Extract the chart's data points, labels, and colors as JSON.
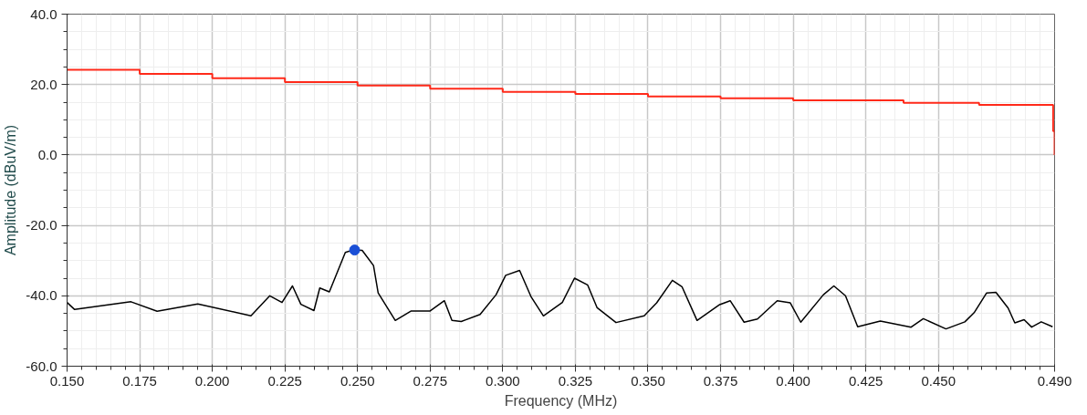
{
  "chart_data": {
    "type": "line",
    "xlabel": "Frequency (MHz)",
    "ylabel": "Amplitude (dBuV/m)",
    "xlim": [
      0.15,
      0.49
    ],
    "ylim": [
      -60,
      40
    ],
    "xticks": [
      {
        "value": 0.15,
        "label": "0.150"
      },
      {
        "value": 0.175,
        "label": "0.175"
      },
      {
        "value": 0.2,
        "label": "0.200"
      },
      {
        "value": 0.225,
        "label": "0.225"
      },
      {
        "value": 0.25,
        "label": "0.250"
      },
      {
        "value": 0.275,
        "label": "0.275"
      },
      {
        "value": 0.3,
        "label": "0.300"
      },
      {
        "value": 0.325,
        "label": "0.325"
      },
      {
        "value": 0.35,
        "label": "0.350"
      },
      {
        "value": 0.375,
        "label": "0.375"
      },
      {
        "value": 0.4,
        "label": "0.400"
      },
      {
        "value": 0.425,
        "label": "0.425"
      },
      {
        "value": 0.45,
        "label": "0.450"
      },
      {
        "value": 0.49,
        "label": "0.490"
      }
    ],
    "yticks": [
      {
        "value": 40,
        "label": "40.0"
      },
      {
        "value": 20,
        "label": "20.0"
      },
      {
        "value": 0,
        "label": "0.0"
      },
      {
        "value": -20,
        "label": "-20.0"
      },
      {
        "value": -40,
        "label": "-40.0"
      },
      {
        "value": -60,
        "label": "-60.0"
      }
    ],
    "grid": true,
    "series": [
      {
        "type": "step",
        "color": "#ff2a1a",
        "x": [
          0.15,
          0.175,
          0.2,
          0.225,
          0.25,
          0.275,
          0.3,
          0.325,
          0.35,
          0.375,
          0.4,
          0.438,
          0.464,
          0.4895,
          0.49
        ],
        "values": [
          24.2,
          23.0,
          21.8,
          20.7,
          19.7,
          18.8,
          17.9,
          17.3,
          16.6,
          16.1,
          15.5,
          14.8,
          14.2,
          6.8,
          0
        ]
      },
      {
        "color": "#000000",
        "x": [
          0.15,
          0.1526,
          0.172,
          0.181,
          0.195,
          0.2133,
          0.2198,
          0.224,
          0.2276,
          0.2305,
          0.235,
          0.237,
          0.2403,
          0.2458,
          0.2484,
          0.2516,
          0.2555,
          0.2571,
          0.263,
          0.2685,
          0.275,
          0.2799,
          0.2825,
          0.2857,
          0.2922,
          0.2977,
          0.301,
          0.3058,
          0.3097,
          0.314,
          0.3205,
          0.3247,
          0.3292,
          0.3325,
          0.339,
          0.3487,
          0.353,
          0.3584,
          0.3617,
          0.3669,
          0.3747,
          0.3783,
          0.3831,
          0.3877,
          0.3945,
          0.399,
          0.4026,
          0.4104,
          0.414,
          0.418,
          0.4222,
          0.43,
          0.4406,
          0.4448,
          0.4526,
          0.4591,
          0.4623,
          0.4666,
          0.4698,
          0.474,
          0.4763,
          0.4795,
          0.4821,
          0.4854,
          0.4893
        ],
        "values": [
          -41.9,
          -43.9,
          -41.7,
          -44.4,
          -42.3,
          -45.7,
          -40,
          -41.9,
          -37.2,
          -42.4,
          -44.2,
          -37.8,
          -38.9,
          -27.7,
          -27,
          -27.1,
          -31.4,
          -39.2,
          -47,
          -44.3,
          -44.3,
          -41.4,
          -47,
          -47.3,
          -45.3,
          -39.7,
          -34.2,
          -32.8,
          -40.2,
          -45.7,
          -41.9,
          -35,
          -36.9,
          -43.4,
          -47.6,
          -45.7,
          -42,
          -35.6,
          -37.4,
          -47,
          -42.5,
          -41.4,
          -47.5,
          -46.6,
          -41.4,
          -42,
          -47.5,
          -39.7,
          -37.2,
          -40,
          -48.8,
          -47.2,
          -48.9,
          -46.5,
          -49.4,
          -47.4,
          -44.8,
          -39.2,
          -39,
          -43.5,
          -47.7,
          -46.8,
          -48.9,
          -47.4,
          -48.8
        ]
      },
      {
        "type": "scatter",
        "marker": "circle",
        "color": "#1a4fd6",
        "x": [
          0.249
        ],
        "values": [
          -27
        ]
      }
    ]
  }
}
